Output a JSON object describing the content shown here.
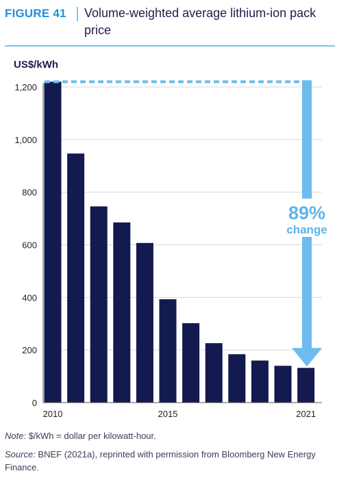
{
  "header": {
    "figure_label": "FIGURE 41",
    "title": "Volume-weighted average lithium-ion pack price"
  },
  "colors": {
    "bar": "#131a4f",
    "accent": "#6cbcef",
    "axis": "#555555",
    "grid": "#d6d6d6",
    "label_blue": "#5fb3ea"
  },
  "chart_data": {
    "type": "bar",
    "ylabel": "US$/kWh",
    "ylim": [
      0,
      1200
    ],
    "yticks": [
      0,
      200,
      400,
      600,
      800,
      "1,000",
      "1,200"
    ],
    "ytick_values": [
      0,
      200,
      400,
      600,
      800,
      1000,
      1200
    ],
    "categories": [
      2010,
      2011,
      2012,
      2013,
      2014,
      2015,
      2016,
      2017,
      2018,
      2019,
      2020,
      2021
    ],
    "values": [
      1220,
      947,
      746,
      685,
      607,
      393,
      302,
      226,
      184,
      160,
      140,
      132
    ],
    "xtick_labels": [
      {
        "index": 0,
        "text": "2010"
      },
      {
        "index": 5,
        "text": "2015"
      },
      {
        "index": 11,
        "text": "2021"
      }
    ],
    "grid": "horizontal",
    "annotation": {
      "value": "89%",
      "text": "change"
    }
  },
  "footer": {
    "note_label": "Note:",
    "note_text": " $/kWh = dollar per kilowatt-hour.",
    "source_label": "Source:",
    "source_text": " BNEF (2021a), reprinted with permission from Bloomberg New Energy Finance."
  }
}
